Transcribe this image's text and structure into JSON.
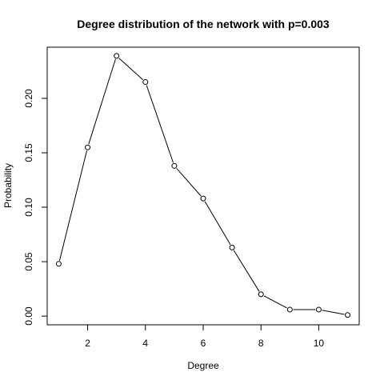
{
  "chart_data": {
    "type": "line",
    "title": "Degree distribution of the network with p=0.003",
    "xlabel": "Degree",
    "ylabel": "Probability",
    "x": [
      1,
      2,
      3,
      4,
      5,
      6,
      7,
      8,
      9,
      10,
      11
    ],
    "y": [
      0.048,
      0.155,
      0.239,
      0.215,
      0.138,
      0.108,
      0.063,
      0.02,
      0.006,
      0.006,
      0.001
    ],
    "xlim": [
      0.6,
      11.4
    ],
    "ylim": [
      -0.008,
      0.247
    ],
    "x_ticks": [
      2,
      4,
      6,
      8,
      10
    ],
    "x_tick_labels": [
      "2",
      "4",
      "6",
      "8",
      "10"
    ],
    "y_ticks": [
      0.0,
      0.05,
      0.1,
      0.15,
      0.2
    ],
    "y_tick_labels": [
      "0.00",
      "0.05",
      "0.10",
      "0.15",
      "0.20"
    ],
    "marker": "open-circle",
    "line_color": "#000000",
    "grid": false,
    "legend": false
  }
}
